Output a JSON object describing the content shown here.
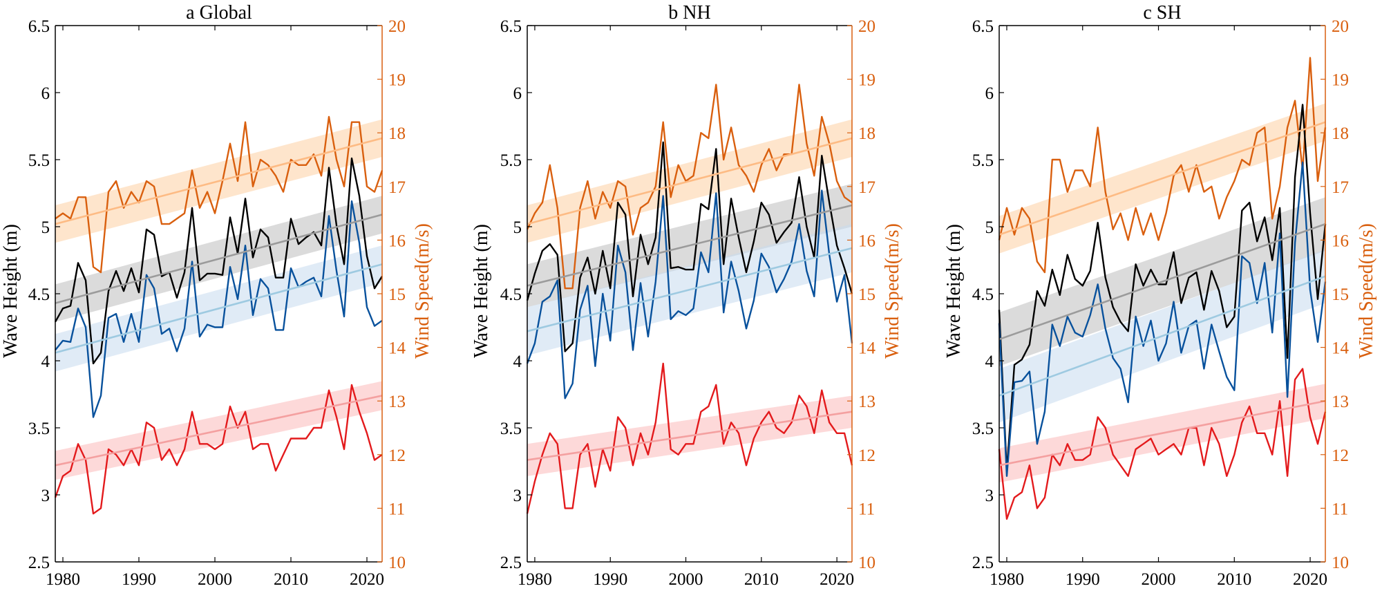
{
  "colors": {
    "axis": "#000000",
    "right_axis": "#d95f0e",
    "swh_global": "#000000",
    "swh_global_trend": "#7f7f7f",
    "swh_extreme_dark": "#08519c",
    "swh_extreme_light": "#9ecae1",
    "swh_extreme_band": "#c6dbef",
    "swh_gray_band": "#bdbdbd",
    "swh_gray_line": "#9b9b9b",
    "wind_high": "#d95f0e",
    "wind_high_light": "#fdbb84",
    "wind_high_band": "#fdd0a2",
    "wind_low": "#e31a1c",
    "wind_low_light": "#f4a0a0",
    "wind_low_band": "#fcbaba"
  },
  "chart_data": [
    {
      "type": "line",
      "title": "a Global",
      "xlabel": "",
      "ylabel": "Wave Height (m)",
      "ylabel_right": "Wind Speed(m/s)",
      "xlim": [
        1979,
        2022
      ],
      "ylim": [
        2.5,
        6.5
      ],
      "ylim_right": [
        10,
        20
      ],
      "xticks": [
        "1980",
        "1990",
        "2000",
        "2010",
        "2020"
      ],
      "yticks": [
        "2.5",
        "3",
        "3.5",
        "4",
        "4.5",
        "5",
        "5.5",
        "6",
        "6.5"
      ],
      "yticks_right": [
        "10",
        "11",
        "12",
        "13",
        "14",
        "15",
        "16",
        "17",
        "18",
        "19",
        "20"
      ],
      "x": [
        1979,
        1980,
        1981,
        1982,
        1983,
        1984,
        1985,
        1986,
        1987,
        1988,
        1989,
        1990,
        1991,
        1992,
        1993,
        1994,
        1995,
        1996,
        1997,
        1998,
        1999,
        2000,
        2001,
        2002,
        2003,
        2004,
        2005,
        2006,
        2007,
        2008,
        2009,
        2010,
        2011,
        2012,
        2013,
        2014,
        2015,
        2016,
        2017,
        2018,
        2019,
        2020,
        2021,
        2022
      ],
      "series": [
        {
          "axis": "right",
          "color_key": "wind_high",
          "values": [
            16.4,
            16.5,
            16.4,
            16.8,
            16.8,
            15.5,
            15.4,
            16.9,
            17.1,
            16.6,
            16.9,
            16.7,
            17.1,
            17.0,
            16.3,
            16.3,
            16.4,
            16.5,
            17.3,
            16.6,
            16.9,
            16.5,
            17.1,
            17.8,
            17.1,
            18.2,
            17.0,
            17.5,
            17.4,
            17.2,
            16.9,
            17.5,
            17.4,
            17.4,
            17.6,
            17.2,
            18.3,
            17.5,
            17.0,
            18.2,
            18.2,
            17.0,
            16.9,
            17.3
          ]
        },
        {
          "axis": "left",
          "color_key": "swh_global",
          "values": [
            4.29,
            4.39,
            4.41,
            4.73,
            4.6,
            3.98,
            4.06,
            4.52,
            4.67,
            4.52,
            4.69,
            4.51,
            4.98,
            4.94,
            4.63,
            4.66,
            4.47,
            4.66,
            5.14,
            4.6,
            4.65,
            4.65,
            4.64,
            5.07,
            4.8,
            5.21,
            4.77,
            4.98,
            4.92,
            4.62,
            4.62,
            5.06,
            4.87,
            4.92,
            4.96,
            4.86,
            5.44,
            5.01,
            4.72,
            5.51,
            5.23,
            4.78,
            4.54,
            4.63
          ]
        },
        {
          "axis": "left",
          "color_key": "swh_extreme_dark",
          "values": [
            4.08,
            4.15,
            4.14,
            4.39,
            4.25,
            3.58,
            3.74,
            4.32,
            4.35,
            4.14,
            4.35,
            4.14,
            4.64,
            4.54,
            4.2,
            4.24,
            4.07,
            4.24,
            4.74,
            4.18,
            4.27,
            4.25,
            4.25,
            4.7,
            4.46,
            4.86,
            4.34,
            4.61,
            4.54,
            4.23,
            4.23,
            4.69,
            4.55,
            4.59,
            4.62,
            4.48,
            5.08,
            4.67,
            4.33,
            5.19,
            4.88,
            4.4,
            4.26,
            4.3
          ]
        },
        {
          "axis": "right",
          "color_key": "wind_low",
          "values": [
            11.2,
            11.6,
            11.7,
            12.2,
            11.9,
            10.9,
            11.0,
            12.1,
            12.0,
            11.8,
            12.1,
            11.8,
            12.6,
            12.5,
            11.9,
            12.1,
            11.8,
            12.1,
            12.8,
            12.2,
            12.2,
            12.1,
            12.2,
            12.9,
            12.5,
            12.8,
            12.1,
            12.2,
            12.2,
            11.7,
            12.0,
            12.3,
            12.3,
            12.3,
            12.5,
            12.5,
            13.2,
            12.7,
            12.1,
            13.3,
            12.8,
            12.4,
            11.9,
            12.0
          ]
        }
      ],
      "trends": [
        {
          "axis": "right",
          "color_key": "wind_high_light",
          "band_key": "wind_high_band",
          "start": 16.3,
          "end": 17.9,
          "band_start": 0.35,
          "band_end": 0.35
        },
        {
          "axis": "left",
          "color_key": "swh_gray_line",
          "band_key": "swh_gray_band",
          "start": 4.43,
          "end": 5.09,
          "band_start": 0.14,
          "band_end": 0.14
        },
        {
          "axis": "left",
          "color_key": "swh_extreme_light",
          "band_key": "swh_extreme_band",
          "start": 4.06,
          "end": 4.72,
          "band_start": 0.14,
          "band_end": 0.14
        },
        {
          "axis": "right",
          "color_key": "wind_low_light",
          "band_key": "wind_low_band",
          "start": 11.8,
          "end": 13.1,
          "band_start": 0.27,
          "band_end": 0.27
        }
      ]
    },
    {
      "type": "line",
      "title": "b NH",
      "xlabel": "",
      "ylabel": "Wave Height (m)",
      "ylabel_right": "Wind Speed(m/s)",
      "xlim": [
        1979,
        2022
      ],
      "ylim": [
        2.5,
        6.5
      ],
      "ylim_right": [
        10,
        20
      ],
      "xticks": [
        "1980",
        "1990",
        "2000",
        "2010",
        "2020"
      ],
      "yticks": [
        "2.5",
        "3",
        "3.5",
        "4",
        "4.5",
        "5",
        "5.5",
        "6",
        "6.5"
      ],
      "yticks_right": [
        "10",
        "11",
        "12",
        "13",
        "14",
        "15",
        "16",
        "17",
        "18",
        "19",
        "20"
      ],
      "x": [
        1979,
        1980,
        1981,
        1982,
        1983,
        1984,
        1985,
        1986,
        1987,
        1988,
        1989,
        1990,
        1991,
        1992,
        1993,
        1994,
        1995,
        1996,
        1997,
        1998,
        1999,
        2000,
        2001,
        2002,
        2003,
        2004,
        2005,
        2006,
        2007,
        2008,
        2009,
        2010,
        2011,
        2012,
        2013,
        2014,
        2015,
        2016,
        2017,
        2018,
        2019,
        2020,
        2021,
        2022
      ],
      "series": [
        {
          "axis": "right",
          "color_key": "wind_high",
          "values": [
            16.2,
            16.5,
            16.7,
            17.4,
            16.6,
            15.1,
            15.1,
            16.6,
            17.1,
            16.4,
            16.9,
            16.6,
            17.1,
            17.0,
            16.1,
            16.6,
            16.7,
            17.0,
            18.2,
            16.8,
            17.4,
            17.1,
            17.2,
            18.0,
            17.9,
            18.9,
            17.5,
            18.1,
            17.4,
            17.2,
            16.9,
            17.4,
            17.7,
            17.3,
            17.6,
            17.6,
            18.9,
            17.8,
            17.2,
            18.3,
            17.8,
            17.1,
            16.8,
            16.7
          ]
        },
        {
          "axis": "left",
          "color_key": "swh_global",
          "values": [
            4.45,
            4.65,
            4.82,
            4.87,
            4.79,
            4.07,
            4.13,
            4.62,
            4.77,
            4.5,
            4.82,
            4.54,
            5.18,
            5.09,
            4.48,
            4.94,
            4.72,
            4.92,
            5.63,
            4.69,
            4.7,
            4.68,
            4.68,
            5.17,
            5.13,
            5.58,
            4.72,
            5.21,
            4.92,
            4.66,
            4.89,
            5.18,
            5.09,
            4.88,
            4.96,
            5.03,
            5.37,
            5.0,
            4.77,
            5.53,
            5.18,
            4.86,
            4.69,
            4.5
          ]
        },
        {
          "axis": "left",
          "color_key": "swh_extreme_dark",
          "values": [
            3.98,
            4.13,
            4.44,
            4.48,
            4.6,
            3.72,
            3.83,
            4.38,
            4.56,
            3.96,
            4.5,
            4.15,
            4.86,
            4.66,
            4.08,
            4.58,
            4.18,
            4.59,
            5.23,
            4.31,
            4.37,
            4.34,
            4.39,
            4.81,
            4.66,
            5.25,
            4.36,
            4.74,
            4.52,
            4.24,
            4.45,
            4.8,
            4.7,
            4.51,
            4.61,
            4.74,
            5.02,
            4.67,
            4.48,
            5.27,
            4.79,
            4.44,
            4.64,
            4.13
          ]
        },
        {
          "axis": "right",
          "color_key": "wind_low",
          "values": [
            10.9,
            11.5,
            12.0,
            12.4,
            12.2,
            11.0,
            11.0,
            12.0,
            12.2,
            11.4,
            12.1,
            11.7,
            12.7,
            12.5,
            11.8,
            12.4,
            12.0,
            12.6,
            13.7,
            12.1,
            12.0,
            12.2,
            12.2,
            12.8,
            12.9,
            13.3,
            12.2,
            12.6,
            12.4,
            11.8,
            12.3,
            12.6,
            12.8,
            12.5,
            12.4,
            12.6,
            13.1,
            12.9,
            12.4,
            13.2,
            12.6,
            12.4,
            12.4,
            11.8
          ]
        }
      ],
      "trends": [
        {
          "axis": "right",
          "color_key": "wind_high_light",
          "band_key": "wind_high_band",
          "start": 16.3,
          "end": 17.9,
          "band_start": 0.35,
          "band_end": 0.35
        },
        {
          "axis": "left",
          "color_key": "swh_gray_line",
          "band_key": "swh_gray_band",
          "start": 4.56,
          "end": 5.16,
          "band_start": 0.16,
          "band_end": 0.16
        },
        {
          "axis": "left",
          "color_key": "swh_extreme_light",
          "band_key": "swh_extreme_band",
          "start": 4.22,
          "end": 4.84,
          "band_start": 0.18,
          "band_end": 0.18
        },
        {
          "axis": "right",
          "color_key": "wind_low_light",
          "band_key": "wind_low_band",
          "start": 11.9,
          "end": 12.8,
          "band_start": 0.3,
          "band_end": 0.3
        }
      ]
    },
    {
      "type": "line",
      "title": "c SH",
      "xlabel": "",
      "ylabel": "Wave Height (m)",
      "ylabel_right": "Wind Speed(m/s)",
      "xlim": [
        1979,
        2022
      ],
      "ylim": [
        2.5,
        6.5
      ],
      "ylim_right": [
        10,
        20
      ],
      "xticks": [
        "1980",
        "1990",
        "2000",
        "2010",
        "2020"
      ],
      "yticks": [
        "2.5",
        "3",
        "3.5",
        "4",
        "4.5",
        "5",
        "5.5",
        "6",
        "6.5"
      ],
      "yticks_right": [
        "10",
        "11",
        "12",
        "13",
        "14",
        "15",
        "16",
        "17",
        "18",
        "19",
        "20"
      ],
      "x": [
        1979,
        1980,
        1981,
        1982,
        1983,
        1984,
        1985,
        1986,
        1987,
        1988,
        1989,
        1990,
        1991,
        1992,
        1993,
        1994,
        1995,
        1996,
        1997,
        1998,
        1999,
        2000,
        2001,
        2002,
        2003,
        2004,
        2005,
        2006,
        2007,
        2008,
        2009,
        2010,
        2011,
        2012,
        2013,
        2014,
        2015,
        2016,
        2017,
        2018,
        2019,
        2020,
        2021,
        2022
      ],
      "series": [
        {
          "axis": "right",
          "color_key": "wind_high",
          "values": [
            16.0,
            16.6,
            16.1,
            16.6,
            16.4,
            15.6,
            15.4,
            17.5,
            17.5,
            16.9,
            17.3,
            17.3,
            17.0,
            18.1,
            16.9,
            16.2,
            16.5,
            16.0,
            16.6,
            16.1,
            16.5,
            16.0,
            16.5,
            17.2,
            17.4,
            16.9,
            17.4,
            16.9,
            17.0,
            16.4,
            16.8,
            17.1,
            17.5,
            17.4,
            18.0,
            18.1,
            16.4,
            17.0,
            18.1,
            18.6,
            17.3,
            19.4,
            17.1,
            18.1
          ]
        },
        {
          "axis": "left",
          "color_key": "swh_global",
          "values": [
            4.38,
            3.18,
            3.97,
            4.01,
            4.12,
            4.52,
            4.41,
            4.68,
            4.49,
            4.79,
            4.61,
            4.56,
            4.67,
            5.03,
            4.62,
            4.4,
            4.29,
            4.22,
            4.72,
            4.56,
            4.68,
            4.57,
            4.57,
            4.81,
            4.43,
            4.62,
            4.66,
            4.38,
            4.67,
            4.52,
            4.25,
            4.33,
            5.12,
            5.18,
            4.89,
            5.07,
            4.75,
            5.14,
            4.02,
            5.37,
            5.91,
            5.1,
            4.46,
            5.02
          ]
        },
        {
          "axis": "left",
          "color_key": "swh_extreme_dark",
          "values": [
            4.28,
            3.14,
            3.84,
            3.85,
            3.92,
            3.38,
            3.62,
            4.27,
            4.11,
            4.33,
            4.21,
            4.18,
            4.34,
            4.57,
            4.24,
            4.02,
            3.94,
            3.69,
            4.33,
            4.11,
            4.3,
            4.0,
            4.13,
            4.44,
            4.06,
            4.26,
            4.3,
            3.94,
            4.27,
            4.07,
            3.88,
            3.78,
            4.78,
            4.73,
            4.43,
            4.73,
            4.21,
            4.95,
            3.73,
            4.88,
            5.48,
            4.53,
            4.14,
            4.59
          ]
        },
        {
          "axis": "right",
          "color_key": "wind_low",
          "values": [
            12.1,
            10.8,
            11.2,
            11.3,
            11.8,
            11.0,
            11.2,
            12.0,
            11.8,
            12.2,
            11.9,
            11.9,
            12.0,
            12.7,
            12.5,
            12.0,
            11.8,
            11.6,
            12.1,
            12.2,
            12.3,
            12.0,
            12.1,
            12.2,
            12.0,
            12.5,
            12.5,
            11.8,
            12.5,
            12.2,
            11.6,
            12.0,
            12.6,
            12.9,
            12.4,
            12.4,
            12.0,
            13.0,
            11.6,
            13.4,
            13.6,
            12.7,
            12.2,
            12.8
          ]
        }
      ],
      "trends": [
        {
          "axis": "right",
          "color_key": "wind_high_light",
          "band_key": "wind_high_band",
          "start": 16.1,
          "end": 18.2,
          "band_start": 0.35,
          "band_end": 0.35
        },
        {
          "axis": "left",
          "color_key": "swh_gray_line",
          "band_key": "swh_gray_band",
          "start": 4.16,
          "end": 5.02,
          "band_start": 0.2,
          "band_end": 0.2
        },
        {
          "axis": "left",
          "color_key": "swh_extreme_light",
          "band_key": "swh_extreme_band",
          "start": 3.74,
          "end": 4.63,
          "band_start": 0.2,
          "band_end": 0.2
        },
        {
          "axis": "right",
          "color_key": "wind_low_light",
          "band_key": "wind_low_band",
          "start": 11.8,
          "end": 13.0,
          "band_start": 0.32,
          "band_end": 0.32
        }
      ]
    }
  ]
}
